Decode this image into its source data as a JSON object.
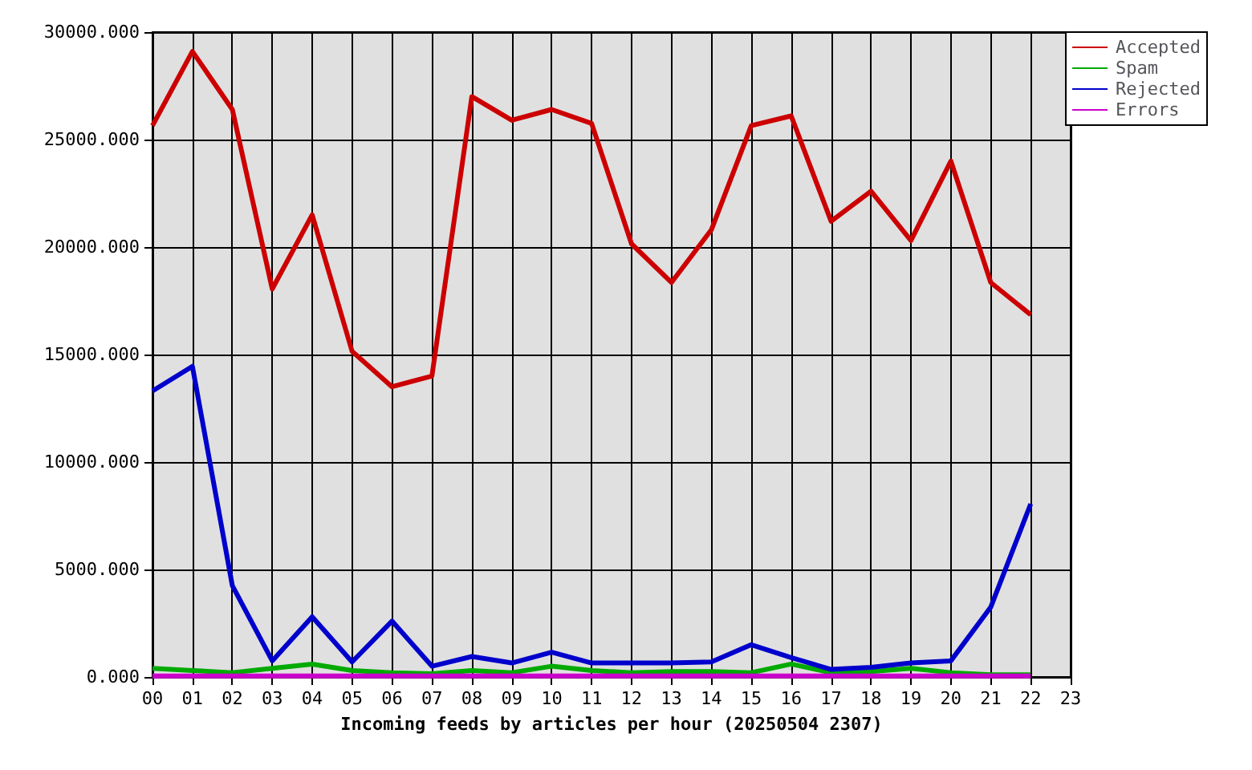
{
  "chart_data": {
    "type": "line",
    "xlabel": "Incoming feeds by articles per hour (20250504 2307)",
    "categories": [
      "00",
      "01",
      "02",
      "03",
      "04",
      "05",
      "06",
      "07",
      "08",
      "09",
      "10",
      "11",
      "12",
      "13",
      "14",
      "15",
      "16",
      "17",
      "18",
      "19",
      "20",
      "21",
      "22",
      "23"
    ],
    "series": [
      {
        "name": "Accepted",
        "color": "#cc0000",
        "values": [
          25650,
          29100,
          26400,
          18050,
          21500,
          15150,
          13500,
          14000,
          27000,
          25900,
          26400,
          25750,
          20150,
          18350,
          20800,
          25650,
          26100,
          21200,
          22600,
          20300,
          24000,
          18350,
          16850,
          null
        ]
      },
      {
        "name": "Spam",
        "color": "#00aa00",
        "values": [
          400,
          300,
          200,
          400,
          600,
          300,
          200,
          150,
          300,
          200,
          500,
          300,
          200,
          250,
          250,
          200,
          600,
          200,
          250,
          400,
          200,
          100,
          100,
          null
        ]
      },
      {
        "name": "Rejected",
        "color": "#0000cc",
        "values": [
          13300,
          14450,
          4250,
          750,
          2800,
          700,
          2600,
          500,
          950,
          650,
          1150,
          650,
          650,
          650,
          700,
          1500,
          900,
          350,
          450,
          650,
          750,
          3250,
          8050,
          null
        ]
      },
      {
        "name": "Errors",
        "color": "#cc00cc",
        "values": [
          50,
          50,
          50,
          50,
          50,
          50,
          50,
          50,
          50,
          50,
          50,
          50,
          50,
          50,
          50,
          50,
          50,
          50,
          50,
          50,
          50,
          50,
          50,
          null
        ]
      }
    ],
    "ylim": [
      0,
      30000
    ],
    "yticks": [
      {
        "value": 0,
        "label": "0.000"
      },
      {
        "value": 5000,
        "label": "5000.000"
      },
      {
        "value": 10000,
        "label": "10000.000"
      },
      {
        "value": 15000,
        "label": "15000.000"
      },
      {
        "value": 20000,
        "label": "20000.000"
      },
      {
        "value": 25000,
        "label": "25000.000"
      },
      {
        "value": 30000,
        "label": "30000.000"
      }
    ],
    "grid": true,
    "legend": "top right"
  }
}
